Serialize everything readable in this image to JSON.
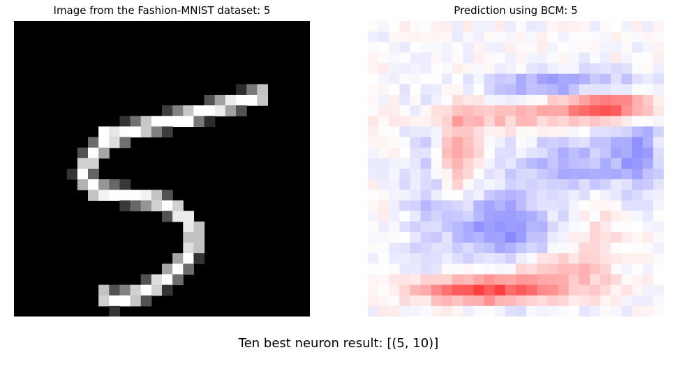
{
  "left_panel": {
    "title": "Image from the Fashion-MNIST dataset: 5",
    "image_kind": "28x28 grayscale digit",
    "background_color": "#000000",
    "foreground_color": "#ffffff"
  },
  "right_panel": {
    "title": "Prediction using BCM: 5",
    "image_kind": "28x28 diverging heatmap",
    "negative_color": "#3333ff",
    "neutral_color": "#ffffff",
    "positive_color": "#ff3333"
  },
  "footer": {
    "text": "Ten best neuron result: [(5, 10)]"
  }
}
